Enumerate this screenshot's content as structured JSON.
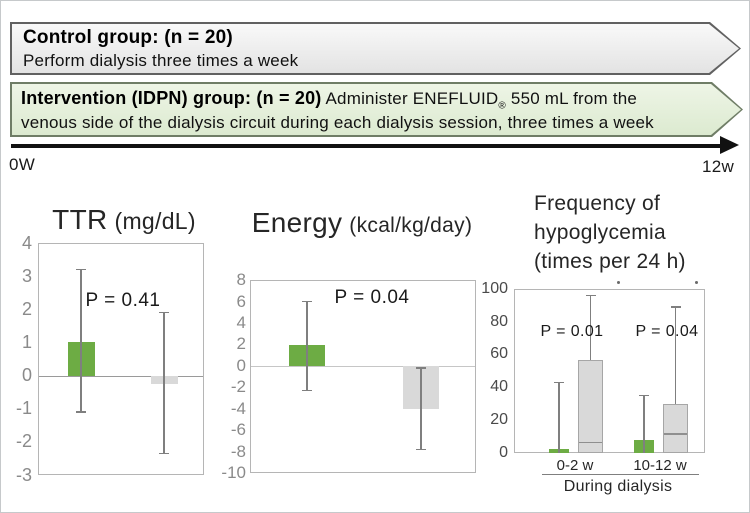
{
  "banners": {
    "control": {
      "title": "Control group: (n = 20)",
      "description": "Perform dialysis three times a week"
    },
    "intervention": {
      "title": "Intervention (IDPN) group: (n = 20)",
      "line1_before_reg": "Administer ENEFLUID",
      "reg_mark": "®",
      "line1_after_reg": " 550 mL from the",
      "line2": "venous side of the dialysis circuit during each dialysis session, three times a week"
    }
  },
  "timeline": {
    "start_label": "0W",
    "end_label": "12w"
  },
  "chart_data": [
    {
      "id": "ttr",
      "type": "bar",
      "title": "TTR",
      "unit": "(mg/dL)",
      "p_label": "P = 0.41",
      "ylim": [
        -3,
        4
      ],
      "yticks": [
        4,
        3,
        2,
        1,
        0,
        -1,
        -2,
        -3
      ],
      "grid": "zero-line-only",
      "series": [
        {
          "name": "green",
          "value": 1.0,
          "err_low": -1.1,
          "err_high": 3.2
        },
        {
          "name": "gray",
          "value": -0.25,
          "err_low": -2.35,
          "err_high": 1.9
        }
      ]
    },
    {
      "id": "energy",
      "type": "bar",
      "title": "Energy",
      "unit": "(kcal/kg/day)",
      "p_label": "P = 0.04",
      "ylim": [
        -10,
        8
      ],
      "yticks": [
        8,
        6,
        4,
        2,
        0,
        -2,
        -4,
        -6,
        -8,
        -10
      ],
      "grid": "zero-line-only",
      "series": [
        {
          "name": "green",
          "value": 1.9,
          "err_low": -2.3,
          "err_high": 6.0
        },
        {
          "name": "gray",
          "value": -4.0,
          "err_low": -7.8,
          "err_high": -0.2
        }
      ]
    },
    {
      "id": "hypo",
      "type": "bar+box",
      "title_lines": [
        "Frequency of",
        "hypoglycemia",
        "(times per 24 h)"
      ],
      "ylim": [
        0,
        100
      ],
      "yticks": [
        100,
        80,
        60,
        40,
        20,
        0
      ],
      "x_axis_label": "During dialysis",
      "groups": [
        {
          "label": "0-2 w",
          "p_label": "P = 0.01",
          "green_bar": {
            "value": 2.5,
            "whisker_high": 43
          },
          "gray_box": {
            "top": 57,
            "median": 7,
            "whisker_high": 96
          }
        },
        {
          "label": "10-12 w",
          "p_label": "P = 0.04",
          "green_bar": {
            "value": 8,
            "whisker_high": 35
          },
          "gray_box": {
            "top": 30,
            "median": 12,
            "whisker_high": 89
          }
        }
      ]
    }
  ],
  "colors": {
    "green_bar": "#6dac44",
    "gray_bar": "#d9d9d9",
    "whisker": "#7f7f7f",
    "plot_frame": "#b5b5b5",
    "gray_box_border": "#a6a6a6",
    "median_line": "#8f8f8f",
    "control_banner_border": "#616161",
    "intervention_banner_border": "#6f7d66",
    "timeline": "#111111"
  }
}
